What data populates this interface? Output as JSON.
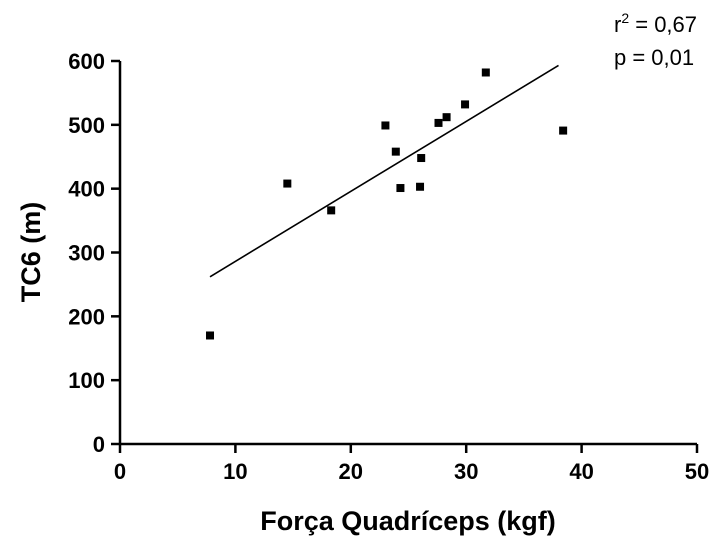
{
  "chart_data": {
    "type": "scatter",
    "xlabel": "Força Quadríceps (kgf)",
    "ylabel": "TC6 (m)",
    "xlim": [
      0,
      50
    ],
    "ylim": [
      0,
      600
    ],
    "x_ticks": [
      "0",
      "10",
      "20",
      "30",
      "40",
      "50"
    ],
    "y_ticks": [
      "0",
      "100",
      "200",
      "300",
      "400",
      "500",
      "600"
    ],
    "grid": false,
    "points": [
      {
        "x": 7.8,
        "y": 170
      },
      {
        "x": 14.5,
        "y": 408
      },
      {
        "x": 18.3,
        "y": 366
      },
      {
        "x": 23.0,
        "y": 499
      },
      {
        "x": 23.9,
        "y": 458
      },
      {
        "x": 24.3,
        "y": 401
      },
      {
        "x": 26.0,
        "y": 403
      },
      {
        "x": 26.1,
        "y": 448
      },
      {
        "x": 27.6,
        "y": 503
      },
      {
        "x": 28.3,
        "y": 512
      },
      {
        "x": 29.9,
        "y": 532
      },
      {
        "x": 31.7,
        "y": 582
      },
      {
        "x": 38.4,
        "y": 491
      }
    ],
    "fit_line": {
      "x1": 7.8,
      "y1": 262,
      "x2": 38.0,
      "y2": 593
    },
    "stats": {
      "r2_prefix": "r",
      "r2_sup": "2",
      "r2_value": " = 0,67",
      "p_text": "p = 0,01"
    },
    "colors": {
      "marker": "#000000",
      "line": "#000000",
      "axis": "#000000"
    }
  }
}
